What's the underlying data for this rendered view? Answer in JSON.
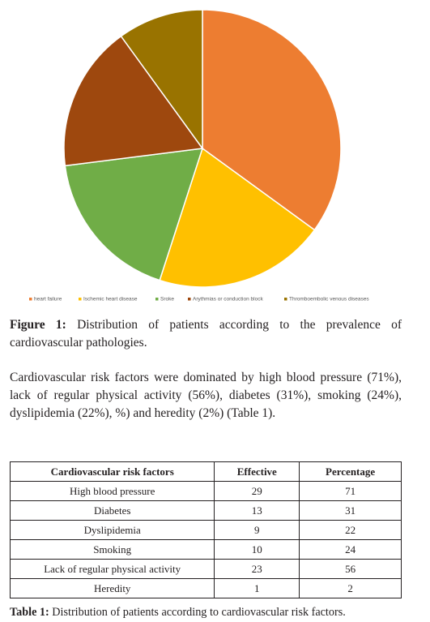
{
  "chart_data": {
    "type": "pie",
    "slices": [
      {
        "label": "heart failure",
        "value": 35,
        "color": "#ED7D31"
      },
      {
        "label": "Ischemic heart disease",
        "value": 20,
        "color": "#FFC000"
      },
      {
        "label": "Sroke",
        "value": 18,
        "color": "#70AD47"
      },
      {
        "label": "Arythmias or conduction block",
        "value": 17,
        "color": "#9E480E"
      },
      {
        "label": "Thromboembolic venous diseases",
        "value": 10,
        "color": "#997300"
      }
    ],
    "legend_position": "bottom",
    "start_angle": "top, clockwise"
  },
  "figure_caption": {
    "label": "Figure 1:",
    "text": "Distribution of patients according to the prevalence of cardiovascular pathologies."
  },
  "paragraph": "Cardiovascular risk factors were dominated by high blood pressure (71%), lack of regular physical activity (56%), diabetes (31%), smoking (24%), dyslipidemia (22%), %) and heredity (2%) (Table 1).",
  "table": {
    "headers": [
      "Cardiovascular risk factors",
      "Effective",
      "Percentage"
    ],
    "rows": [
      [
        "High blood pressure",
        "29",
        "71"
      ],
      [
        "Diabetes",
        "13",
        "31"
      ],
      [
        "Dyslipidemia",
        "9",
        "22"
      ],
      [
        "Smoking",
        "10",
        "24"
      ],
      [
        "Lack of regular physical activity",
        "23",
        "56"
      ],
      [
        "Heredity",
        "1",
        "2"
      ]
    ]
  },
  "table_caption": {
    "label": "Table 1:",
    "text": "Distribution of patients according to cardiovascular risk factors."
  }
}
